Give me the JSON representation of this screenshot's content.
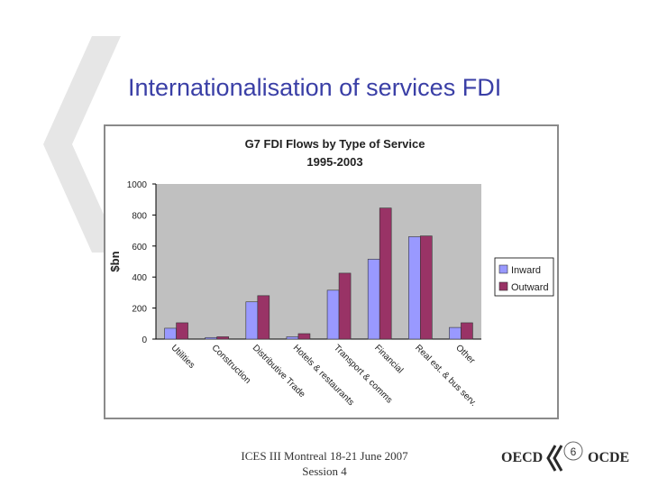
{
  "slide": {
    "title": "Internationalisation of services  FDI",
    "footer_line1": "ICES III Montreal 18-21 June 2007",
    "footer_line2": "Session 4",
    "page_number": "6",
    "logo_left": "OECD",
    "logo_right": "OCDE"
  },
  "colors": {
    "title": "#3a3fa6",
    "inward": "#9999ff",
    "outward": "#993366",
    "decoration": "#e6e6e6"
  },
  "chart_data": {
    "type": "bar",
    "title": "G7 FDI Flows by Type of Service",
    "subtitle": "1995-2003",
    "ylabel": "$bn",
    "xlabel": "",
    "ylim": [
      0,
      1000
    ],
    "yticks": [
      0,
      200,
      400,
      600,
      800,
      1000
    ],
    "grid": false,
    "legend_position": "right",
    "categories": [
      "Utilities",
      "Construction",
      "Distributive Trade",
      "Hotels & restaurants",
      "Transport & comms",
      "Financial",
      "Real est. & bus serv.",
      "Other"
    ],
    "series": [
      {
        "name": "Inward",
        "values": [
          70,
          10,
          240,
          15,
          315,
          515,
          660,
          75
        ]
      },
      {
        "name": "Outward",
        "values": [
          105,
          15,
          280,
          35,
          425,
          845,
          665,
          105
        ]
      }
    ]
  }
}
